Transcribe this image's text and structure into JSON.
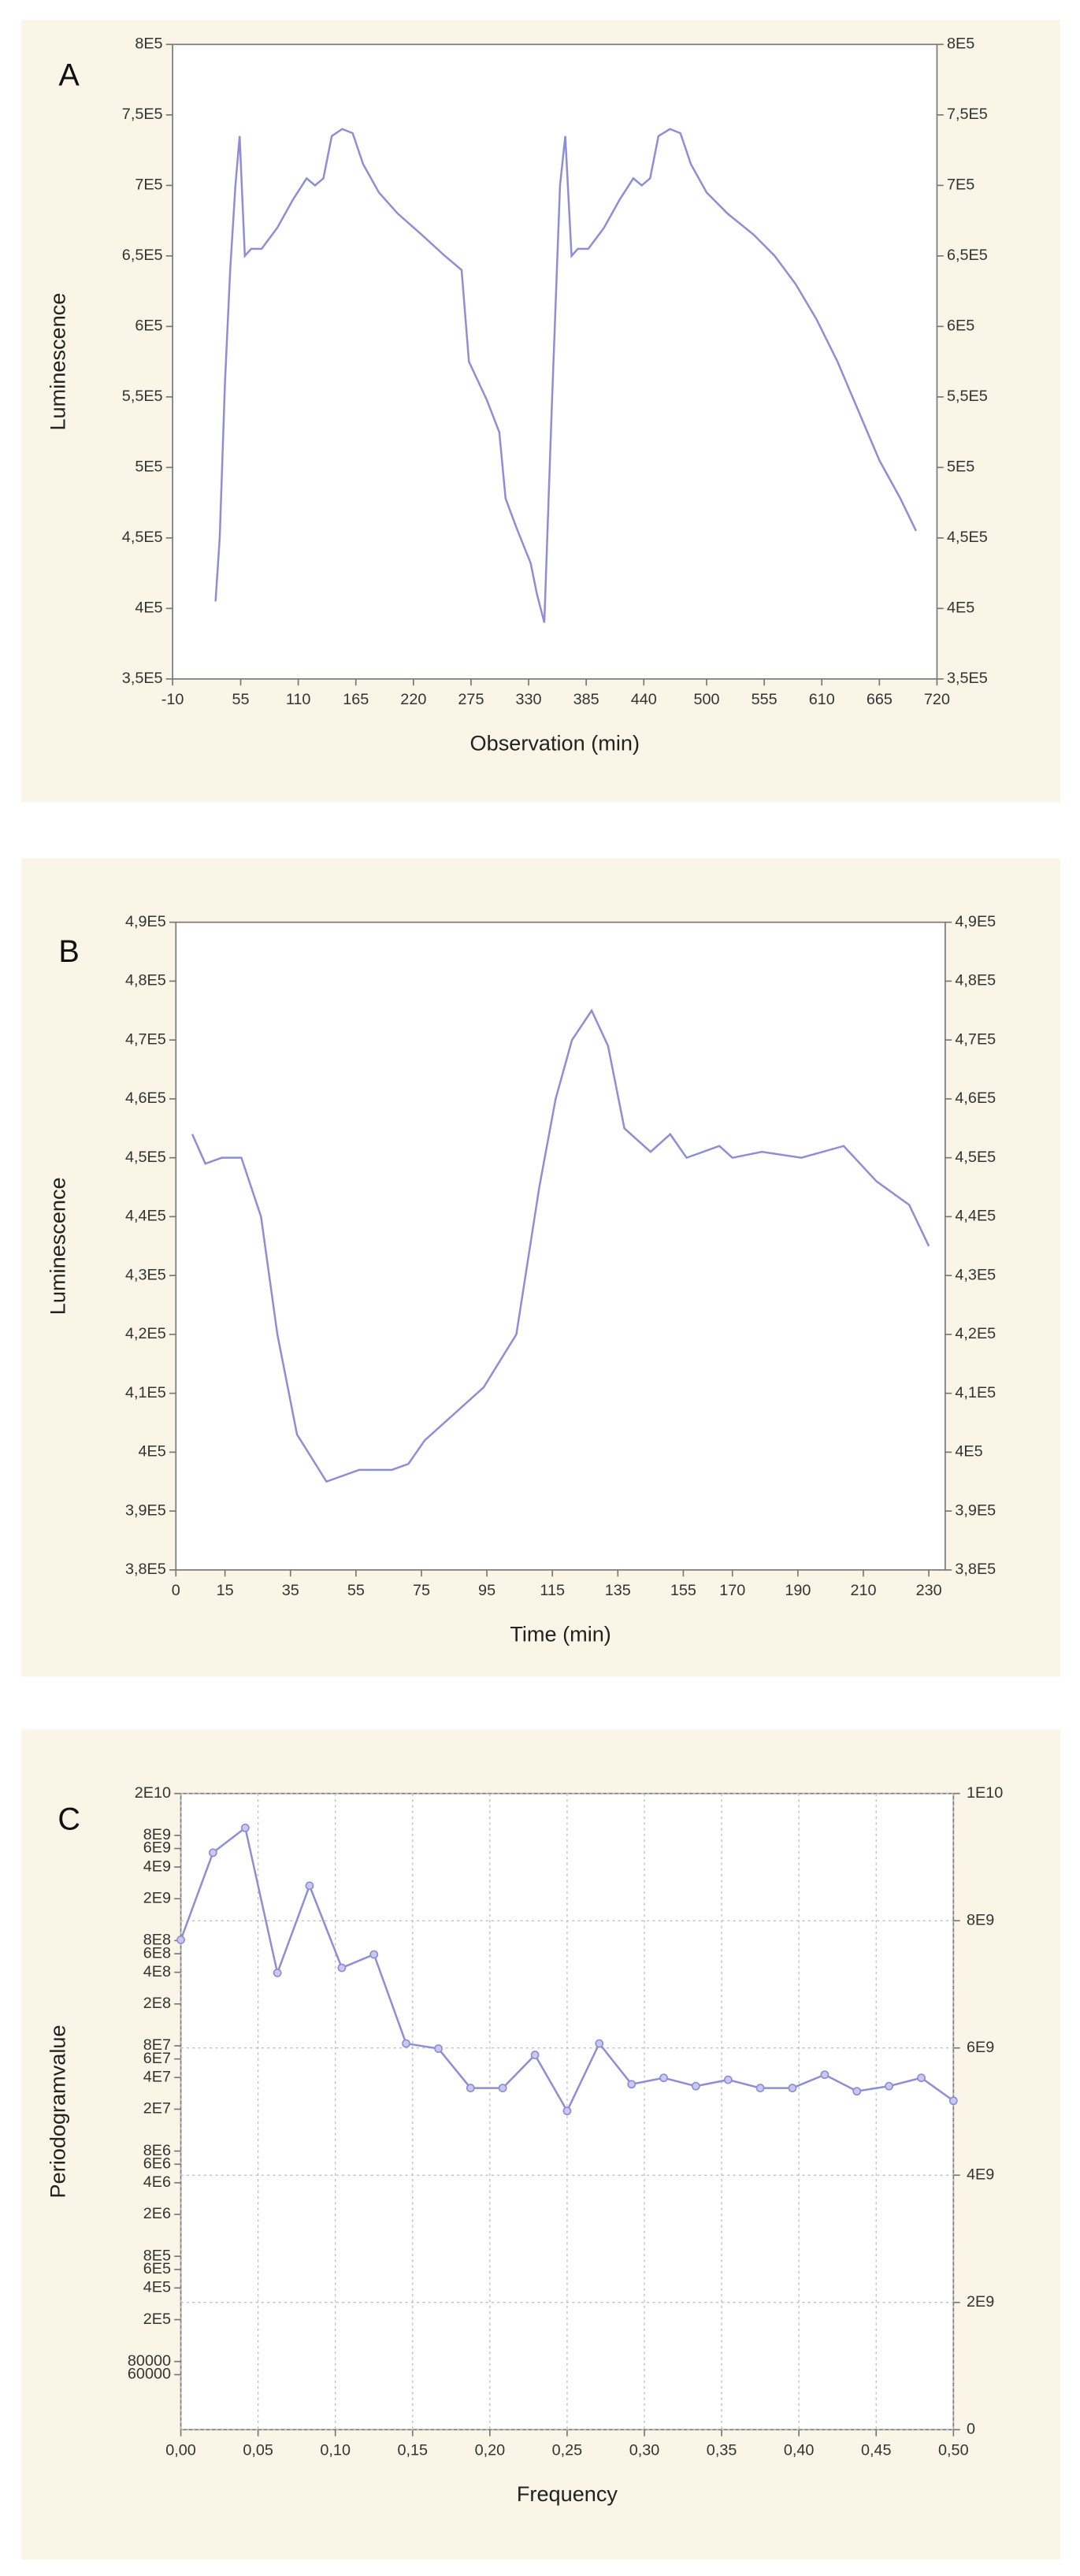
{
  "chart_data": [
    {
      "type": "line",
      "panel": "A",
      "xlabel": "Observation (min)",
      "ylabel": "Luminescence",
      "xlim": [
        -10,
        720
      ],
      "xticks": [
        -10,
        55,
        110,
        165,
        220,
        275,
        330,
        385,
        440,
        500,
        555,
        610,
        665,
        720
      ],
      "ylim": [
        350000,
        800000
      ],
      "yticks": [
        {
          "value": 350000,
          "label": "3,5E5"
        },
        {
          "value": 400000,
          "label": "4E5"
        },
        {
          "value": 450000,
          "label": "4,5E5"
        },
        {
          "value": 500000,
          "label": "5E5"
        },
        {
          "value": 550000,
          "label": "5,5E5"
        },
        {
          "value": 600000,
          "label": "6E5"
        },
        {
          "value": 650000,
          "label": "6,5E5"
        },
        {
          "value": 700000,
          "label": "7E5"
        },
        {
          "value": 750000,
          "label": "7,5E5"
        },
        {
          "value": 800000,
          "label": "8E5"
        }
      ],
      "right_axis_mirror": true,
      "grid": false,
      "x": [
        31,
        35,
        40,
        45,
        50,
        54,
        59,
        65,
        75,
        90,
        105,
        118,
        126,
        134,
        142,
        152,
        162,
        172,
        187,
        205,
        228,
        250,
        266,
        273,
        290,
        302,
        308,
        318,
        332,
        338,
        345,
        352,
        360,
        365,
        371,
        377,
        387,
        402,
        417,
        430,
        438,
        446,
        454,
        465,
        475,
        485,
        500,
        520,
        545,
        565,
        585,
        605,
        625,
        645,
        665,
        685,
        700
      ],
      "series": [
        {
          "color": "#8e8ed6",
          "values": [
            405000,
            450000,
            560000,
            640000,
            700000,
            735000,
            650000,
            655000,
            655000,
            670000,
            690000,
            705000,
            700000,
            705000,
            735000,
            740000,
            737000,
            715000,
            695000,
            680000,
            665000,
            650000,
            640000,
            575000,
            548000,
            525000,
            478000,
            458000,
            432000,
            410000,
            390000,
            540000,
            700000,
            735000,
            650000,
            655000,
            655000,
            670000,
            690000,
            705000,
            700000,
            705000,
            735000,
            740000,
            737000,
            715000,
            695000,
            680000,
            665000,
            650000,
            630000,
            605000,
            575000,
            540000,
            505000,
            478000,
            455000
          ]
        }
      ]
    },
    {
      "type": "line",
      "panel": "B",
      "xlabel": "Time (min)",
      "ylabel": "Luminescence",
      "xlim": [
        0,
        235
      ],
      "xticks": [
        0,
        15,
        35,
        55,
        75,
        95,
        115,
        135,
        155,
        170,
        190,
        210,
        230
      ],
      "ylim": [
        380000,
        490000
      ],
      "yticks": [
        {
          "value": 380000,
          "label": "3,8E5"
        },
        {
          "value": 390000,
          "label": "3,9E5"
        },
        {
          "value": 400000,
          "label": "4E5"
        },
        {
          "value": 410000,
          "label": "4,1E5"
        },
        {
          "value": 420000,
          "label": "4,2E5"
        },
        {
          "value": 430000,
          "label": "4,3E5"
        },
        {
          "value": 440000,
          "label": "4,4E5"
        },
        {
          "value": 450000,
          "label": "4,5E5"
        },
        {
          "value": 460000,
          "label": "4,6E5"
        },
        {
          "value": 470000,
          "label": "4,7E5"
        },
        {
          "value": 480000,
          "label": "4,8E5"
        },
        {
          "value": 490000,
          "label": "4,9E5"
        }
      ],
      "right_axis_mirror": true,
      "grid": false,
      "x": [
        5,
        9,
        14,
        20,
        26,
        31,
        37,
        46,
        56,
        66,
        71,
        76,
        86,
        94,
        104,
        111,
        116,
        121,
        127,
        132,
        137,
        145,
        151,
        156,
        166,
        170,
        179,
        191,
        204,
        214,
        224,
        230
      ],
      "series": [
        {
          "color": "#8e8ed6",
          "values": [
            454000,
            449000,
            450000,
            450000,
            440000,
            420000,
            403000,
            395000,
            397000,
            397000,
            398000,
            402000,
            407000,
            411000,
            420000,
            445000,
            460000,
            470000,
            475000,
            469000,
            455000,
            451000,
            454000,
            450000,
            452000,
            450000,
            451000,
            450000,
            452000,
            446000,
            442000,
            435000
          ]
        }
      ]
    },
    {
      "type": "line",
      "panel": "C",
      "xlabel": "Frequency",
      "ylabel": "Periodogramvalue",
      "xlim": [
        0,
        0.5
      ],
      "xticks": [
        {
          "value": 0,
          "label": "0,00"
        },
        {
          "value": 0.05,
          "label": "0,05"
        },
        {
          "value": 0.1,
          "label": "0,10"
        },
        {
          "value": 0.15,
          "label": "0,15"
        },
        {
          "value": 0.2,
          "label": "0,20"
        },
        {
          "value": 0.25,
          "label": "0,25"
        },
        {
          "value": 0.3,
          "label": "0,30"
        },
        {
          "value": 0.35,
          "label": "0,35"
        },
        {
          "value": 0.4,
          "label": "0,40"
        },
        {
          "value": 0.45,
          "label": "0,45"
        },
        {
          "value": 0.5,
          "label": "0,50"
        }
      ],
      "ylim": [
        18000,
        20000000000
      ],
      "log_y": true,
      "yticks": [
        {
          "value": 20000000000,
          "label": "2E10"
        },
        {
          "value": 8000000000,
          "label": "8E9"
        },
        {
          "value": 6000000000,
          "label": "6E9"
        },
        {
          "value": 4000000000,
          "label": "4E9"
        },
        {
          "value": 2000000000,
          "label": "2E9"
        },
        {
          "value": 800000000,
          "label": "8E8"
        },
        {
          "value": 600000000,
          "label": "6E8"
        },
        {
          "value": 400000000,
          "label": "4E8"
        },
        {
          "value": 200000000,
          "label": "2E8"
        },
        {
          "value": 80000000,
          "label": "8E7"
        },
        {
          "value": 60000000,
          "label": "6E7"
        },
        {
          "value": 40000000,
          "label": "4E7"
        },
        {
          "value": 20000000,
          "label": "2E7"
        },
        {
          "value": 8000000,
          "label": "8E6"
        },
        {
          "value": 6000000,
          "label": "6E6"
        },
        {
          "value": 4000000,
          "label": "4E6"
        },
        {
          "value": 2000000,
          "label": "2E6"
        },
        {
          "value": 800000,
          "label": "8E5"
        },
        {
          "value": 600000,
          "label": "6E5"
        },
        {
          "value": 400000,
          "label": "4E5"
        },
        {
          "value": 200000,
          "label": "2E5"
        },
        80000,
        60000
      ],
      "y2lim": [
        0,
        10000000000
      ],
      "y2ticks": [
        0,
        {
          "value": 2000000000,
          "label": "2E9"
        },
        {
          "value": 4000000000,
          "label": "4E9"
        },
        {
          "value": 6000000000,
          "label": "6E9"
        },
        {
          "value": 8000000000,
          "label": "8E9"
        },
        {
          "value": 10000000000,
          "label": "1E10"
        }
      ],
      "grid": true,
      "x": [
        0,
        0.0208,
        0.0417,
        0.0625,
        0.0833,
        0.1042,
        0.125,
        0.1458,
        0.1667,
        0.1875,
        0.2083,
        0.2292,
        0.25,
        0.2708,
        0.2917,
        0.3125,
        0.3333,
        0.3542,
        0.375,
        0.3958,
        0.4167,
        0.4375,
        0.4583,
        0.4792,
        0.5
      ],
      "series": [
        {
          "color": "#8e8ed6",
          "axis": "y2",
          "marker": "circle",
          "values": [
            7700000000,
            9070000000,
            9460000000,
            7180000000,
            8550000000,
            7260000000,
            7470000000,
            6070000000,
            5990000000,
            5370000000,
            5370000000,
            5890000000,
            5010000000,
            6070000000,
            5430000000,
            5530000000,
            5400000000,
            5500000000,
            5370000000,
            5370000000,
            5580000000,
            5320000000,
            5400000000,
            5530000000,
            5170000000
          ]
        }
      ]
    }
  ]
}
